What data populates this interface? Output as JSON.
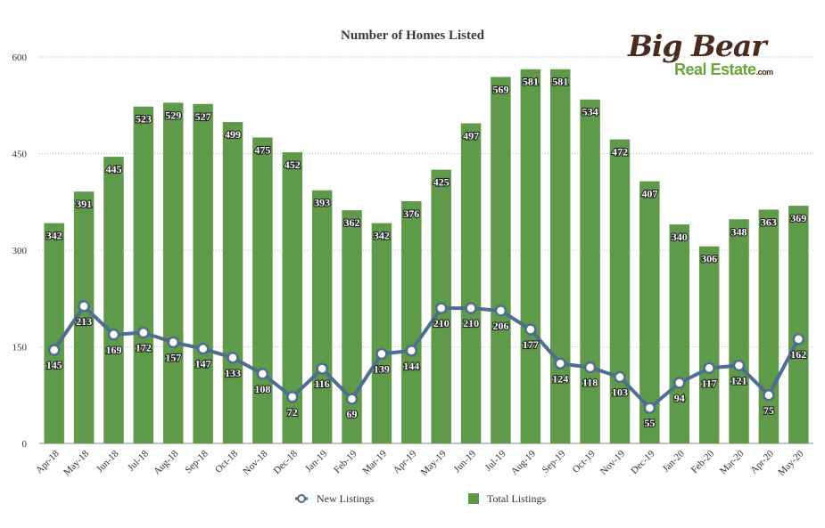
{
  "logo": {
    "main": "Big Bear",
    "sub": "Real Estate",
    "suffix": ".com"
  },
  "chart_data": {
    "type": "bar",
    "title": "Number of Homes Listed",
    "categories": [
      "Apr-18",
      "May-18",
      "Jun-18",
      "Jul-18",
      "Aug-18",
      "Sep-18",
      "Oct-18",
      "Nov-18",
      "Dec-18",
      "Jan-19",
      "Feb-19",
      "Mar-19",
      "Apr-19",
      "May-19",
      "Jun-19",
      "Jul-19",
      "Aug-19",
      "Sep-19",
      "Oct-19",
      "Nov-19",
      "Dec-19",
      "Jan-20",
      "Feb-20",
      "Mar-20",
      "Apr-20",
      "May-20"
    ],
    "series": [
      {
        "name": "Total Listings",
        "type": "bar",
        "color": "#5e9a4a",
        "values": [
          342,
          391,
          445,
          523,
          529,
          527,
          499,
          475,
          452,
          393,
          362,
          342,
          376,
          425,
          497,
          569,
          581,
          581,
          534,
          472,
          407,
          340,
          306,
          348,
          363,
          369
        ]
      },
      {
        "name": "New Listings",
        "type": "line",
        "color": "#4f6d8f",
        "values": [
          145,
          213,
          169,
          172,
          157,
          147,
          133,
          108,
          72,
          116,
          69,
          139,
          144,
          210,
          210,
          206,
          177,
          124,
          118,
          103,
          55,
          94,
          117,
          121,
          75,
          162
        ]
      }
    ],
    "ylim": [
      0,
      600
    ],
    "yticks": [
      0,
      150,
      300,
      450,
      600
    ],
    "grid": true,
    "legend_position": "bottom"
  }
}
